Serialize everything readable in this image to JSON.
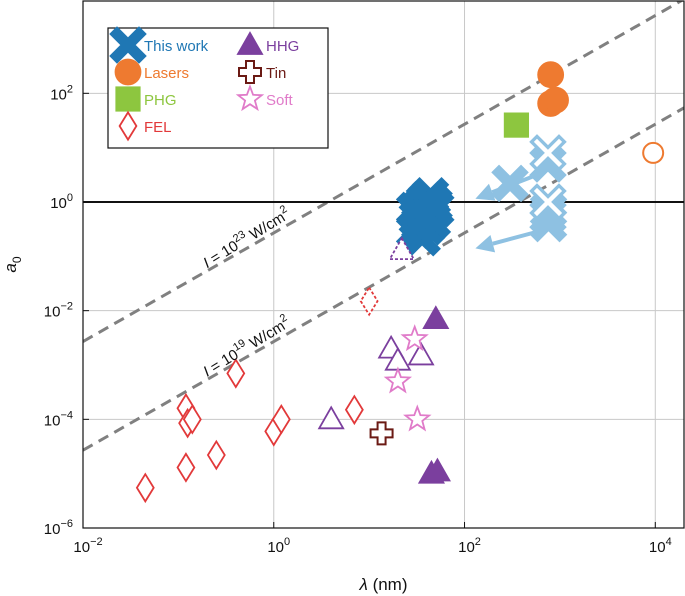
{
  "chart_data": {
    "type": "scatter",
    "xscale": "log",
    "yscale": "log",
    "xlim": [
      0.01,
      20000
    ],
    "ylim": [
      1e-06,
      5000
    ],
    "grid": true,
    "legend_position": "top-left",
    "xlabel": {
      "var": "λ",
      "unit": " (nm)"
    },
    "ylabel": {
      "var": "a",
      "sub": "0"
    },
    "xticks": [
      {
        "value": 0.01,
        "base": "10",
        "exp": "−2"
      },
      {
        "value": 1,
        "base": "10",
        "exp": "0"
      },
      {
        "value": 100,
        "base": "10",
        "exp": "2"
      },
      {
        "value": 10000,
        "base": "10",
        "exp": "4"
      }
    ],
    "yticks": [
      {
        "value": 1e-06,
        "base": "10",
        "exp": "−6"
      },
      {
        "value": 0.0001,
        "base": "10",
        "exp": "−4"
      },
      {
        "value": 0.01,
        "base": "10",
        "exp": "−2"
      },
      {
        "value": 1,
        "base": "10",
        "exp": "0"
      },
      {
        "value": 100,
        "base": "10",
        "exp": "2"
      }
    ],
    "reference_line": {
      "y": 1
    },
    "isointensity_lines": [
      {
        "label_prefix": "I",
        "label_mid": " = 10",
        "label_exp": "23",
        "label_unit": " W/cm",
        "label_unit_exp": "2",
        "points": [
          [
            0.01,
            0.0027
          ],
          [
            20000,
            5400
          ]
        ],
        "label_at": [
          0.2,
          0.06
        ],
        "angle_deg": -31.5
      },
      {
        "label_prefix": "I",
        "label_mid": " = 10",
        "label_exp": "19",
        "label_unit": " W/cm",
        "label_unit_exp": "2",
        "points": [
          [
            0.01,
            2.7e-05
          ],
          [
            20000,
            54
          ]
        ],
        "label_at": [
          0.2,
          0.0006
        ],
        "angle_deg": -31.5
      }
    ],
    "arrows": [
      {
        "from": [
          700,
          3.6
        ],
        "to": [
          130,
          1.15
        ],
        "color": "#8EC1E2"
      },
      {
        "from": [
          700,
          0.31
        ],
        "to": [
          130,
          0.14
        ],
        "color": "#8EC1E2"
      }
    ],
    "series": [
      {
        "name": "This work",
        "marker": "x",
        "color": "#1F77B4",
        "filled": true,
        "points": [
          [
            30,
            0.3
          ],
          [
            32,
            0.5
          ],
          [
            35,
            0.8
          ],
          [
            36,
            0.22
          ],
          [
            38,
            1.0
          ],
          [
            40,
            0.35
          ],
          [
            42,
            0.6
          ],
          [
            44,
            1.3
          ],
          [
            46,
            0.45
          ],
          [
            48,
            0.9
          ],
          [
            50,
            0.75
          ],
          [
            34,
            0.4
          ],
          [
            30,
            0.7
          ],
          [
            40,
            1.1
          ]
        ]
      },
      {
        "name": "This work (simulation)",
        "marker": "x",
        "color": "#8EC1E2",
        "filled": true,
        "in_legend": false,
        "points": [
          [
            300,
            2.2
          ],
          [
            750,
            5.0
          ],
          [
            750,
            0.55
          ],
          [
            760,
            0.4
          ],
          [
            760,
            0.7
          ]
        ]
      },
      {
        "name": "This work (hollow)",
        "marker": "x",
        "color": "#8EC1E2",
        "filled": false,
        "in_legend": false,
        "points": [
          [
            750,
            8.0
          ],
          [
            750,
            1.0
          ]
        ]
      },
      {
        "name": "Lasers",
        "marker": "circle",
        "color": "#EE7A30",
        "filled": true,
        "points": [
          [
            800,
            220
          ],
          [
            800,
            65
          ],
          [
            900,
            75
          ]
        ]
      },
      {
        "name": "Lasers (hollow)",
        "marker": "circle",
        "color": "#EE7A30",
        "filled": false,
        "in_legend": false,
        "points": [
          [
            9500,
            8
          ]
        ]
      },
      {
        "name": "PHG",
        "marker": "square",
        "color": "#8DC63F",
        "filled": true,
        "points": [
          [
            350,
            26
          ]
        ]
      },
      {
        "name": "FEL",
        "marker": "diamond",
        "color": "#E2393A",
        "filled": false,
        "points": [
          [
            0.045,
            5.5e-06
          ],
          [
            0.12,
            0.00016
          ],
          [
            0.12,
            1.3e-05
          ],
          [
            0.125,
            8.5e-05
          ],
          [
            0.14,
            0.0001
          ],
          [
            0.25,
            2.2e-05
          ],
          [
            0.4,
            0.0007
          ],
          [
            1.0,
            6e-05
          ],
          [
            1.2,
            0.0001
          ],
          [
            7.0,
            0.00015
          ]
        ]
      },
      {
        "name": "FEL (dashed)",
        "marker": "diamond",
        "color": "#E2393A",
        "filled": false,
        "dashed": true,
        "in_legend": false,
        "points": [
          [
            10,
            0.015
          ]
        ]
      },
      {
        "name": "HHG",
        "marker": "triangle",
        "color": "#7B3F9E",
        "filled": true,
        "points": [
          [
            50,
            0.007
          ],
          [
            45,
            1e-05
          ],
          [
            52,
            1.1e-05
          ]
        ]
      },
      {
        "name": "HHG (hollow)",
        "marker": "triangle",
        "color": "#7B3F9E",
        "filled": false,
        "in_legend": false,
        "points": [
          [
            4,
            0.0001
          ],
          [
            17,
            0.002
          ],
          [
            20,
            0.0012
          ],
          [
            35,
            0.0015
          ]
        ]
      },
      {
        "name": "HHG (dashed)",
        "marker": "triangle",
        "color": "#7B3F9E",
        "filled": false,
        "dashed": true,
        "in_legend": false,
        "points": [
          [
            22,
            0.13
          ]
        ]
      },
      {
        "name": "Tin",
        "marker": "cross",
        "color": "#6B1A14",
        "filled": false,
        "points": [
          [
            13.5,
            5.5e-05
          ]
        ]
      },
      {
        "name": "Soft",
        "marker": "star",
        "color": "#E07BC9",
        "filled": false,
        "points": [
          [
            30,
            0.003
          ],
          [
            20,
            0.0005
          ],
          [
            32,
            0.0001
          ]
        ]
      }
    ]
  }
}
